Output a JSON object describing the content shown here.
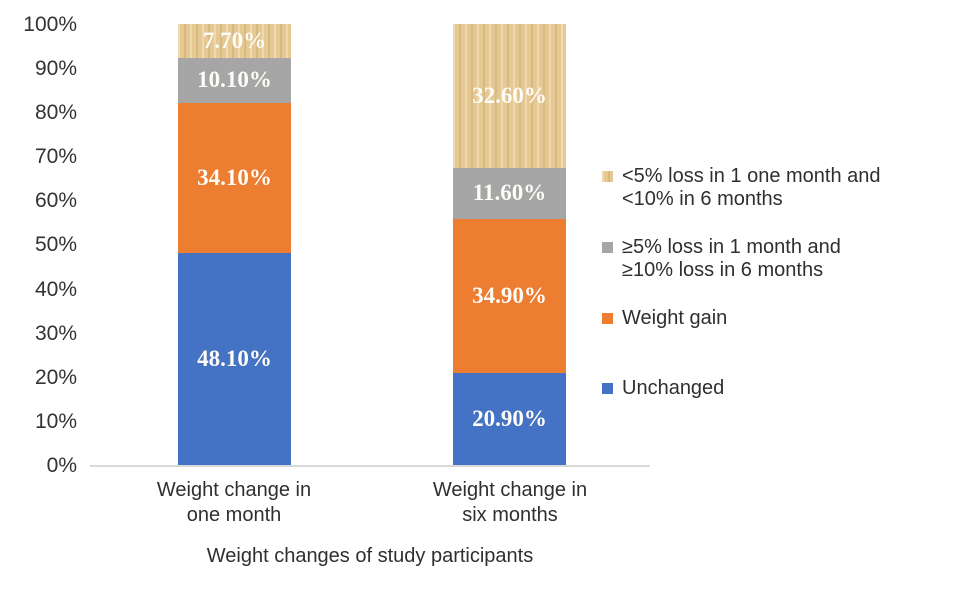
{
  "chart_data": {
    "type": "bar",
    "stacked": true,
    "percent_stacked": true,
    "title": "Weight changes of study participants",
    "xlabel": "Weight changes of study participants",
    "ylabel": "",
    "ylim": [
      0,
      100
    ],
    "grid": false,
    "y_ticks": [
      "100%",
      "90%",
      "80%",
      "70%",
      "60%",
      "50%",
      "40%",
      "30%",
      "20%",
      "10%",
      "0%"
    ],
    "categories": [
      {
        "label_lines": [
          "Weight change in",
          "one month"
        ]
      },
      {
        "label_lines": [
          "Weight change in",
          "six months"
        ]
      }
    ],
    "series": [
      {
        "name": "Unchanged",
        "color": "#4472c4",
        "textured": false,
        "values": [
          48.1,
          20.9
        ],
        "data_labels": [
          "48.10%",
          "20.90%"
        ]
      },
      {
        "name": "Weight gain",
        "color": "#ed7d31",
        "textured": false,
        "values": [
          34.1,
          34.9
        ],
        "data_labels": [
          "34.10%",
          "34.90%"
        ]
      },
      {
        "name": "≥5% loss in 1 month and ≥10% loss in 6 months",
        "color": "#a6a6a6",
        "textured": false,
        "values": [
          10.1,
          11.6
        ],
        "data_labels": [
          "10.10%",
          "11.60%"
        ]
      },
      {
        "name": "<5% loss in 1 one month and <10% in 6 months",
        "color": "#e6c992",
        "textured": true,
        "values": [
          7.7,
          32.6
        ],
        "data_labels": [
          "7.70%",
          "32.60%"
        ]
      }
    ],
    "legend": {
      "position": "right",
      "items": [
        {
          "lines": [
            "<5% loss in 1 one month and",
            "<10% in 6 months"
          ],
          "color": "#e6c992",
          "textured": true
        },
        {
          "lines": [
            "≥5% loss in 1 month and",
            "≥10% loss in 6 months"
          ],
          "color": "#a6a6a6",
          "textured": false
        },
        {
          "lines": [
            "Weight gain"
          ],
          "color": "#ed7d31",
          "textured": false
        },
        {
          "lines": [
            "Unchanged"
          ],
          "color": "#4472c4",
          "textured": false
        }
      ]
    },
    "colors": {
      "unchanged_blue": "#4472c4",
      "weight_gain_orange": "#ed7d31",
      "loss_gray": "#a6a6a6",
      "loss_tan": "#e6c992",
      "axis_line": "#d9d9d9",
      "axis_text": "#2f2f2f",
      "data_label_text": "#ffffff",
      "background": "#ffffff"
    }
  }
}
